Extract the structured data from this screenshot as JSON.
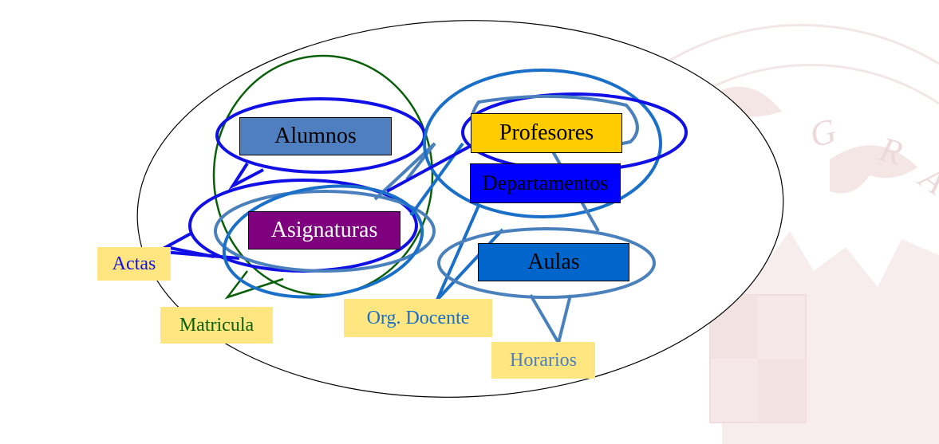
{
  "colors": {
    "background": "#ffffff",
    "blue_bubble": "#1010e6",
    "light_blue_bubble": "#4a80bc",
    "sky_blue_bubble": "#1a6fc9",
    "green_bubble": "#0a5f0a",
    "label_bg": "#ffe680",
    "watermark": "#f3e6e6"
  },
  "diagram": {
    "boxes": {
      "alumnos": {
        "text": "Alumnos",
        "fill": "#4f7fbf",
        "text_color": "#000000"
      },
      "asignaturas": {
        "text": "Asignaturas",
        "fill": "#7f007f",
        "text_color": "#ffffff"
      },
      "profesores": {
        "text": "Profesores",
        "fill": "#ffcc00",
        "text_color": "#000000"
      },
      "departamentos": {
        "text": "Departamentos",
        "fill": "#0000ff",
        "text_color": "#000000"
      },
      "aulas": {
        "text": "Aulas",
        "fill": "#0066cc",
        "text_color": "#000000"
      }
    },
    "labels": {
      "actas": {
        "text": "Actas",
        "color": "#1010e6"
      },
      "matricula": {
        "text": "Matricula",
        "color": "#0a5f0a"
      },
      "org_docente": {
        "text": "Org. Docente",
        "color": "#1a6fc9"
      },
      "horarios": {
        "text": "Horarios",
        "color": "#4a80bc"
      }
    },
    "watermark_letters": [
      "G",
      "R",
      "A"
    ]
  }
}
